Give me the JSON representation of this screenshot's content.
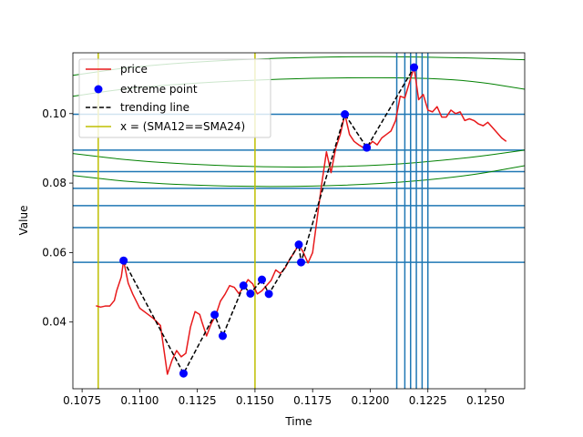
{
  "chart_data": {
    "type": "line",
    "xlabel": "Time",
    "ylabel": "Value",
    "xlim": [
      0.1071,
      0.1267
    ],
    "ylim": [
      0.0208,
      0.1175
    ],
    "x_ticks": [
      0.1075,
      0.11,
      0.1125,
      0.115,
      0.1175,
      0.12,
      0.1225,
      0.125
    ],
    "x_tick_labels": [
      "0.1075",
      "0.1100",
      "0.1125",
      "0.1150",
      "0.1175",
      "0.1200",
      "0.1225",
      "0.1250"
    ],
    "y_ticks": [
      0.04,
      0.06,
      0.08,
      0.1
    ],
    "y_tick_labels": [
      "0.04",
      "0.06",
      "0.08",
      "0.10"
    ],
    "grid": false,
    "legend_position": "top-left",
    "colors": {
      "price": "#e8191b",
      "extreme": "#0000ff",
      "trend": "#000000",
      "sma_cross": "#bfbf00",
      "hlines": "#1f77b4",
      "vlines": "#1f77b4",
      "arcs": "#008000"
    },
    "series": [
      {
        "name": "price",
        "x": [
          0.1081,
          0.1083,
          0.1085,
          0.1087,
          0.1089,
          0.109,
          0.1092,
          0.1093,
          0.1095,
          0.1097,
          0.11,
          0.1103,
          0.1106,
          0.1109,
          0.1112,
          0.1114,
          0.1116,
          0.1118,
          0.112,
          0.1122,
          0.1124,
          0.1126,
          0.1127,
          0.1129,
          0.1131,
          0.1133,
          0.1135,
          0.1137,
          0.1139,
          0.1141,
          0.1143,
          0.1145,
          0.1147,
          0.1149,
          0.1151,
          0.1153,
          0.1155,
          0.1157,
          0.1159,
          0.1161,
          0.1163,
          0.1165,
          0.1167,
          0.1169,
          0.1171,
          0.1173,
          0.1175,
          0.1177,
          0.1179,
          0.1181,
          0.1183,
          0.1185,
          0.1187,
          0.1189,
          0.1191,
          0.1193,
          0.1195,
          0.1197,
          0.1199,
          0.1201,
          0.1203,
          0.1205,
          0.1207,
          0.1209,
          0.1211,
          0.1213,
          0.1215,
          0.1217,
          0.1219,
          0.1221,
          0.1223,
          0.1225,
          0.1227,
          0.1229,
          0.1231,
          0.1233,
          0.1235,
          0.1237,
          0.1239,
          0.1241,
          0.1243,
          0.1245,
          0.1247,
          0.1249,
          0.1251,
          0.1253,
          0.1255,
          0.1257,
          0.1259
        ],
        "y": [
          0.0447,
          0.0443,
          0.0446,
          0.0446,
          0.0462,
          0.049,
          0.053,
          0.0577,
          0.0512,
          0.048,
          0.044,
          0.0425,
          0.041,
          0.039,
          0.025,
          0.029,
          0.0318,
          0.03,
          0.031,
          0.0385,
          0.043,
          0.0422,
          0.04,
          0.036,
          0.0395,
          0.042,
          0.046,
          0.048,
          0.0505,
          0.05,
          0.0482,
          0.05,
          0.0522,
          0.051,
          0.0481,
          0.049,
          0.0505,
          0.052,
          0.055,
          0.054,
          0.0555,
          0.058,
          0.06,
          0.0623,
          0.06,
          0.057,
          0.06,
          0.07,
          0.08,
          0.089,
          0.083,
          0.09,
          0.094,
          0.0998,
          0.094,
          0.092,
          0.091,
          0.0902,
          0.0905,
          0.092,
          0.091,
          0.093,
          0.094,
          0.095,
          0.098,
          0.105,
          0.1045,
          0.109,
          0.1133,
          0.104,
          0.1055,
          0.101,
          0.1005,
          0.102,
          0.099,
          0.099,
          0.101,
          0.1,
          0.1005,
          0.098,
          0.0985,
          0.098,
          0.097,
          0.0965,
          0.0975,
          0.096,
          0.0945,
          0.093,
          0.092
        ]
      },
      {
        "name": "extreme point",
        "x": [
          0.1093,
          0.1119,
          0.11325,
          0.1136,
          0.1145,
          0.1148,
          0.1153,
          0.1156,
          0.1169,
          0.117,
          0.1189,
          0.11985,
          0.1219
        ],
        "y": [
          0.0577,
          0.0252,
          0.0421,
          0.036,
          0.0505,
          0.0482,
          0.0522,
          0.0481,
          0.0623,
          0.0572,
          0.0998,
          0.0902,
          0.1133
        ]
      },
      {
        "name": "trending line",
        "x": [
          0.1093,
          0.1119,
          0.11325,
          0.1136,
          0.1145,
          0.1148,
          0.1153,
          0.1156,
          0.1169,
          0.117,
          0.1189,
          0.11985,
          0.1219
        ],
        "y": [
          0.0577,
          0.0252,
          0.0421,
          0.036,
          0.0505,
          0.0482,
          0.0522,
          0.0481,
          0.0623,
          0.0572,
          0.0998,
          0.0902,
          0.1133
        ]
      },
      {
        "name": "x = (SMA12==SMA24)",
        "x_lines": [
          0.1082,
          0.115
        ]
      }
    ],
    "hlines": [
      0.0998,
      0.0895,
      0.0833,
      0.0785,
      0.0735,
      0.0672,
      0.0572
    ],
    "vlines": [
      0.12115,
      0.1215,
      0.12175,
      0.122,
      0.12225,
      0.1225
    ],
    "arcs": [
      {
        "x": [
          0.1071,
          0.11,
          0.115,
          0.12,
          0.124,
          0.1267
        ],
        "y": [
          0.111,
          0.1138,
          0.1159,
          0.1165,
          0.1161,
          0.1155
        ]
      },
      {
        "x": [
          0.1071,
          0.11,
          0.115,
          0.12,
          0.124,
          0.1267
        ],
        "y": [
          0.105,
          0.1078,
          0.1098,
          0.1105,
          0.1099,
          0.107
        ]
      },
      {
        "x": [
          0.1071,
          0.11,
          0.115,
          0.12,
          0.124,
          0.1267
        ],
        "y": [
          0.0885,
          0.0862,
          0.0845,
          0.0848,
          0.087,
          0.0895
        ]
      },
      {
        "x": [
          0.1071,
          0.11,
          0.115,
          0.12,
          0.124,
          0.1267
        ],
        "y": [
          0.0822,
          0.08,
          0.0788,
          0.0795,
          0.0818,
          0.085
        ]
      }
    ]
  }
}
